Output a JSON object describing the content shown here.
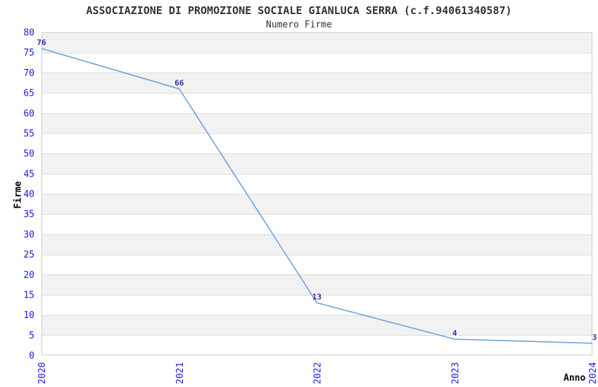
{
  "chart_data": {
    "type": "line",
    "title": "ASSOCIAZIONE DI PROMOZIONE SOCIALE GIANLUCA SERRA (c.f.94061340587)",
    "subtitle": "Numero Firme",
    "xlabel": "Anno",
    "ylabel": "Firme",
    "categories": [
      "2020",
      "2021",
      "2022",
      "2023",
      "2024"
    ],
    "values": [
      76,
      66,
      13,
      4,
      3
    ],
    "data_labels": [
      "76",
      "66",
      "13",
      "4",
      "3"
    ],
    "ylim": [
      0,
      80
    ],
    "ytick_step": 5,
    "grid": true,
    "legend": "none",
    "band_fill": true,
    "colors": {
      "line": "#6fa3dc",
      "tick_label": "#1a1ae6",
      "value_label": "#32329b",
      "band": "#f2f2f2",
      "gridline": "#dcdcdc",
      "border": "#cccccc",
      "title": "#333333",
      "axis_label": "#000000",
      "background": "#ffffff"
    }
  }
}
